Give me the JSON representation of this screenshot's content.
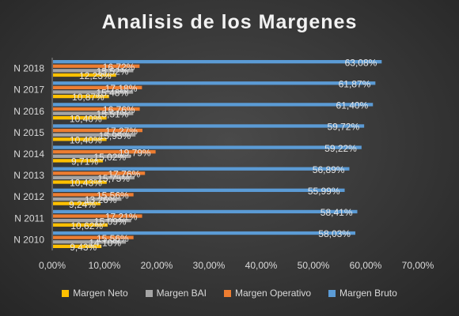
{
  "chart_data": {
    "type": "bar",
    "orientation": "horizontal",
    "title": "Analisis de los Margenes",
    "categories": [
      "N 2010",
      "N 2011",
      "N 2012",
      "N 2013",
      "N 2014",
      "N 2015",
      "N 2016",
      "N 2017",
      "N 2018"
    ],
    "series": [
      {
        "name": "Margen Neto",
        "color": "#ffc000",
        "values": [
          9.43,
          10.62,
          9.24,
          10.43,
          9.71,
          10.4,
          10.4,
          10.87,
          12.23
        ],
        "labels": [
          "9,43%",
          "10,62%",
          "9,24%",
          "10,43%",
          "9,71%",
          "10,40%",
          "10,40%",
          "10,87%",
          "12,23%"
        ]
      },
      {
        "name": "Margen BAI",
        "color": "#a5a5a5",
        "values": [
          14.1,
          15.09,
          13.26,
          15.75,
          15.02,
          15.95,
          15.51,
          15.48,
          15.52
        ],
        "labels": [
          "14,10%",
          "15,09%",
          "13,26%",
          "15,75%",
          "15,02%",
          "15,95%",
          "15,51%",
          "15,48%",
          "15,52%"
        ]
      },
      {
        "name": "Margen Operativo",
        "color": "#ed7d31",
        "values": [
          15.56,
          17.21,
          15.56,
          17.76,
          19.79,
          17.27,
          16.76,
          17.18,
          16.72
        ],
        "labels": [
          "15,56%",
          "17,21%",
          "15,56%",
          "17,76%",
          "19,79%",
          "17,27%",
          "16,76%",
          "17,18%",
          "16,72%"
        ]
      },
      {
        "name": "Margen Bruto",
        "color": "#5b9bd5",
        "values": [
          58.03,
          58.41,
          55.99,
          56.89,
          59.22,
          59.72,
          61.4,
          61.87,
          63.08
        ],
        "labels": [
          "58,03%",
          "58,41%",
          "55,99%",
          "56,89%",
          "59,22%",
          "59,72%",
          "61,40%",
          "61,87%",
          "63,08%"
        ]
      }
    ],
    "xlim": [
      0,
      70
    ],
    "xticks": [
      "0,00%",
      "10,00%",
      "20,00%",
      "30,00%",
      "40,00%",
      "50,00%",
      "60,00%",
      "70,00%"
    ],
    "grid": false,
    "legend_position": "bottom"
  }
}
